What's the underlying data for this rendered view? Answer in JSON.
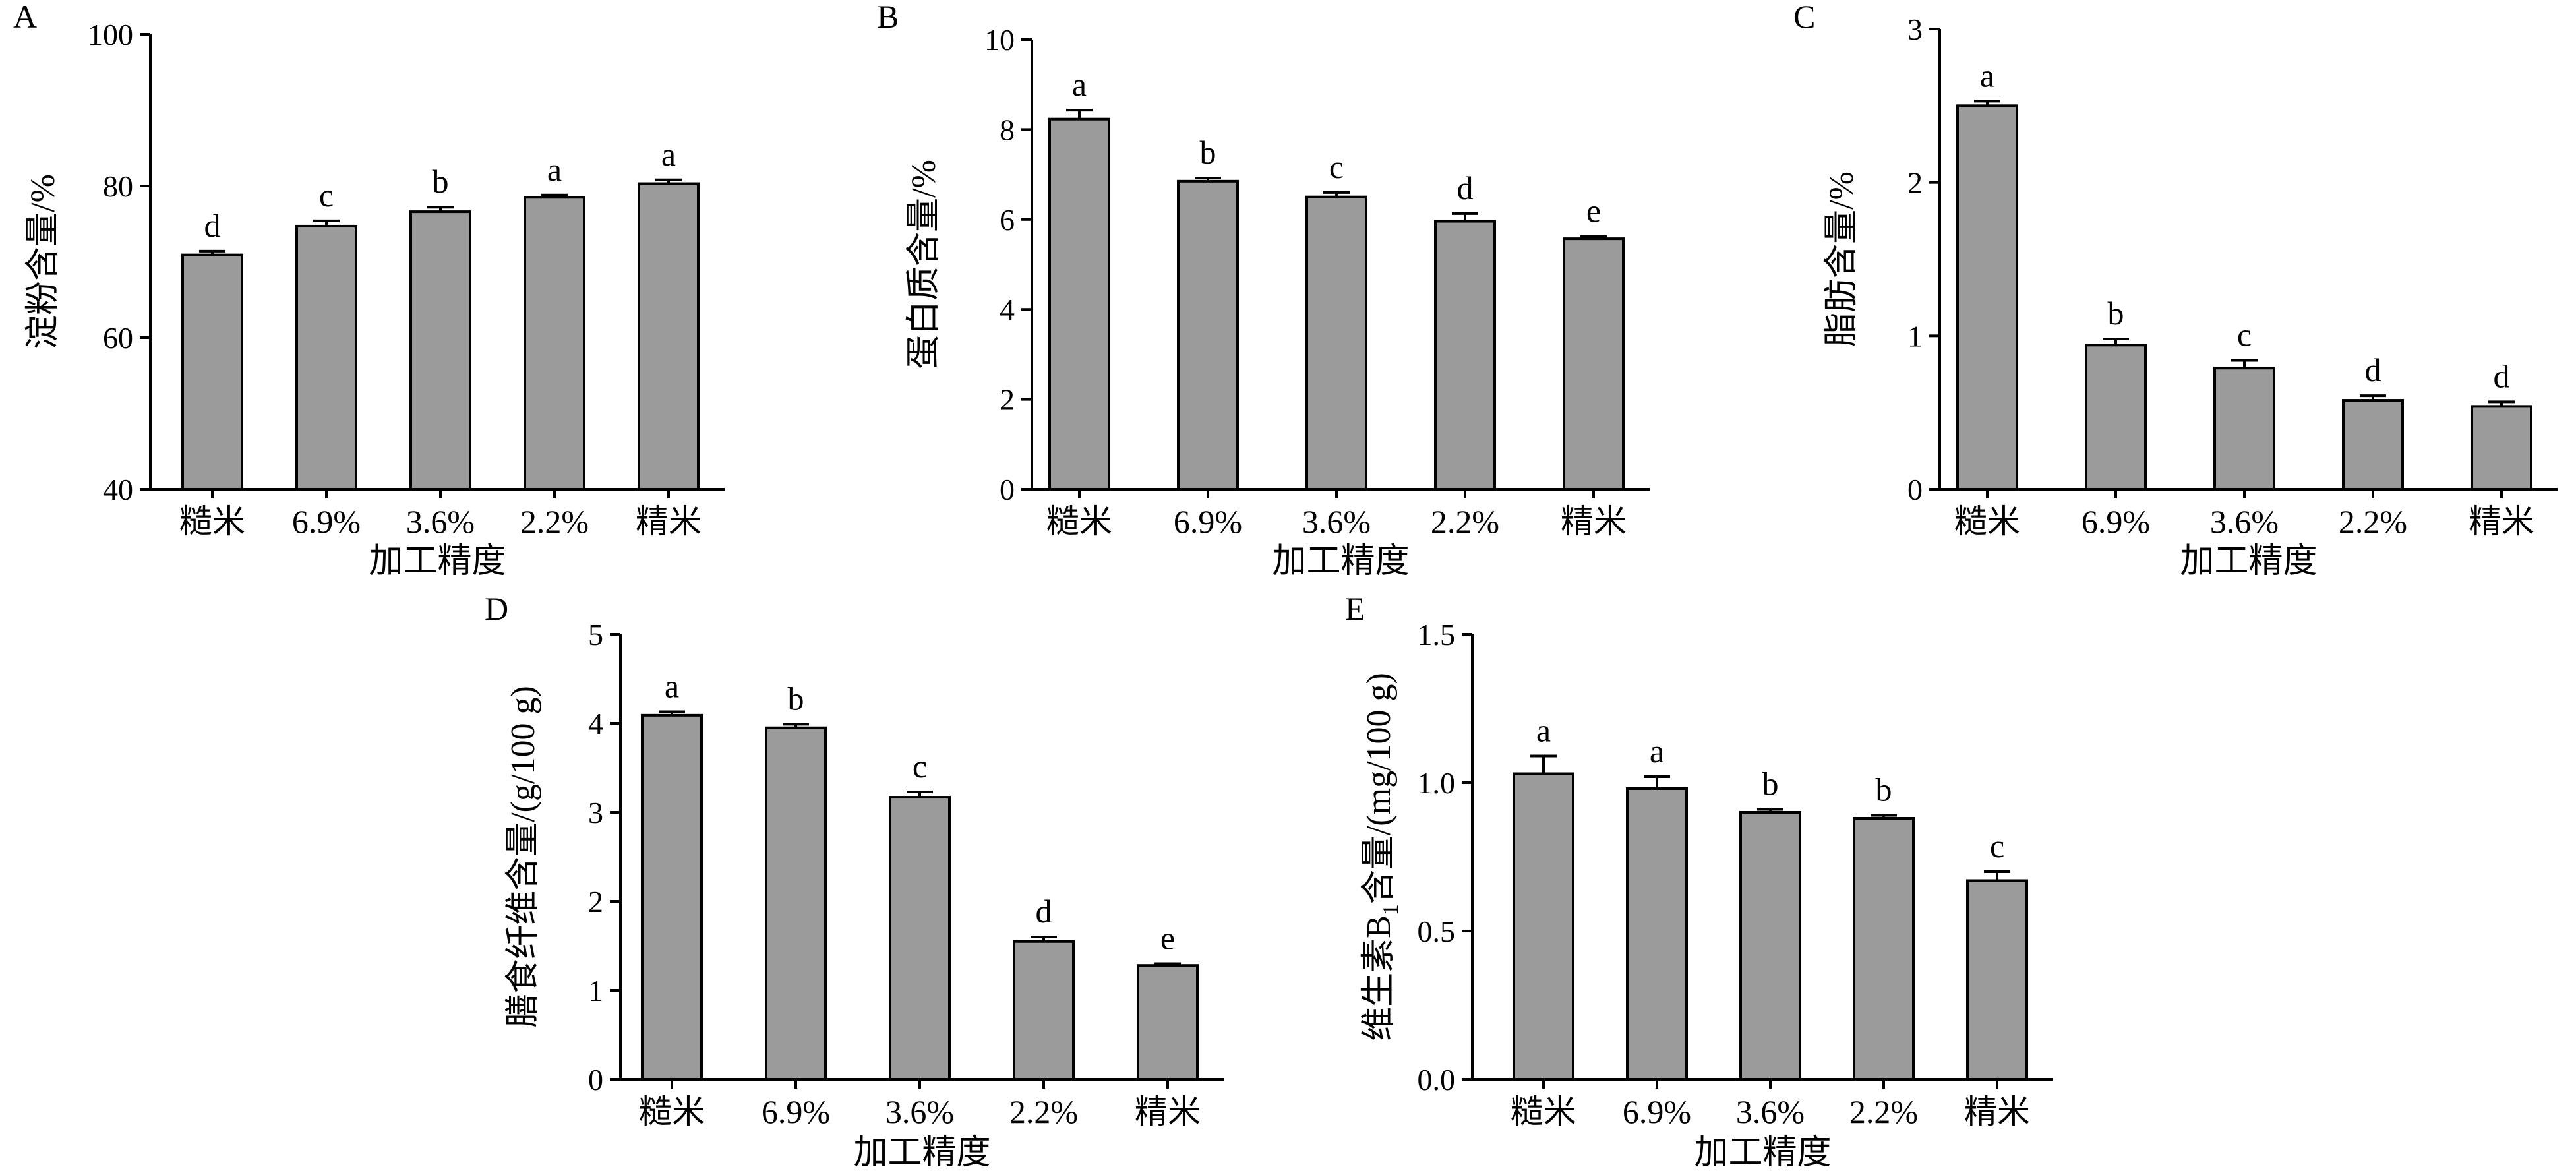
{
  "chart_data": [
    {
      "panel": "A",
      "type": "bar",
      "xlabel": "加工精度",
      "ylabel": "淀粉含量/%",
      "ylabel_sub": "",
      "ylabel_tail": "",
      "categories": [
        "糙米",
        "6.9%",
        "3.6%",
        "2.2%",
        "精米"
      ],
      "values": [
        70.9,
        74.7,
        76.6,
        78.5,
        80.3
      ],
      "errors": [
        0.5,
        0.7,
        0.6,
        0.3,
        0.5
      ],
      "letters": [
        "d",
        "c",
        "b",
        "a",
        "a"
      ],
      "ylim": [
        40,
        100
      ],
      "yticks": [
        "40",
        "60",
        "80",
        "100"
      ]
    },
    {
      "panel": "B",
      "type": "bar",
      "xlabel": "加工精度",
      "ylabel": "蛋白质含量/%",
      "ylabel_sub": "",
      "ylabel_tail": "",
      "categories": [
        "糙米",
        "6.9%",
        "3.6%",
        "2.2%",
        "精米"
      ],
      "values": [
        8.23,
        6.85,
        6.5,
        5.96,
        5.57
      ],
      "errors": [
        0.2,
        0.07,
        0.1,
        0.17,
        0.05
      ],
      "letters": [
        "a",
        "b",
        "c",
        "d",
        "e"
      ],
      "ylim": [
        0,
        10
      ],
      "yticks": [
        "0",
        "2",
        "4",
        "6",
        "8",
        "10"
      ]
    },
    {
      "panel": "C",
      "type": "bar",
      "xlabel": "加工精度",
      "ylabel": "脂肪含量/%",
      "ylabel_sub": "",
      "ylabel_tail": "",
      "categories": [
        "糙米",
        "6.9%",
        "3.6%",
        "2.2%",
        "精米"
      ],
      "values": [
        2.5,
        0.94,
        0.79,
        0.58,
        0.54
      ],
      "errors": [
        0.03,
        0.04,
        0.05,
        0.03,
        0.03
      ],
      "letters": [
        "a",
        "b",
        "c",
        "d",
        "d"
      ],
      "ylim": [
        0,
        3
      ],
      "yticks": [
        "0",
        "1",
        "2",
        "3"
      ]
    },
    {
      "panel": "D",
      "type": "bar",
      "xlabel": "加工精度",
      "ylabel": "膳食纤维含量/(g/100 g)",
      "ylabel_sub": "",
      "ylabel_tail": "",
      "categories": [
        "糙米",
        "6.9%",
        "3.6%",
        "2.2%",
        "精米"
      ],
      "values": [
        4.09,
        3.95,
        3.17,
        1.55,
        1.28
      ],
      "errors": [
        0.04,
        0.04,
        0.06,
        0.05,
        0.02
      ],
      "letters": [
        "a",
        "b",
        "c",
        "d",
        "e"
      ],
      "ylim": [
        0,
        5
      ],
      "yticks": [
        "0",
        "1",
        "2",
        "3",
        "4",
        "5"
      ]
    },
    {
      "panel": "E",
      "type": "bar",
      "xlabel": "加工精度",
      "ylabel": "维生素B",
      "ylabel_sub": "1",
      "ylabel_tail": "含量/(mg/100 g)",
      "categories": [
        "糙米",
        "6.9%",
        "3.6%",
        "2.2%",
        "精米"
      ],
      "values": [
        1.03,
        0.98,
        0.9,
        0.88,
        0.67
      ],
      "errors": [
        0.06,
        0.04,
        0.01,
        0.01,
        0.03
      ],
      "letters": [
        "a",
        "a",
        "b",
        "b",
        "c"
      ],
      "ylim": [
        0,
        1.5
      ],
      "yticks": [
        "0.0",
        "0.5",
        "1.0",
        "1.5"
      ]
    }
  ]
}
